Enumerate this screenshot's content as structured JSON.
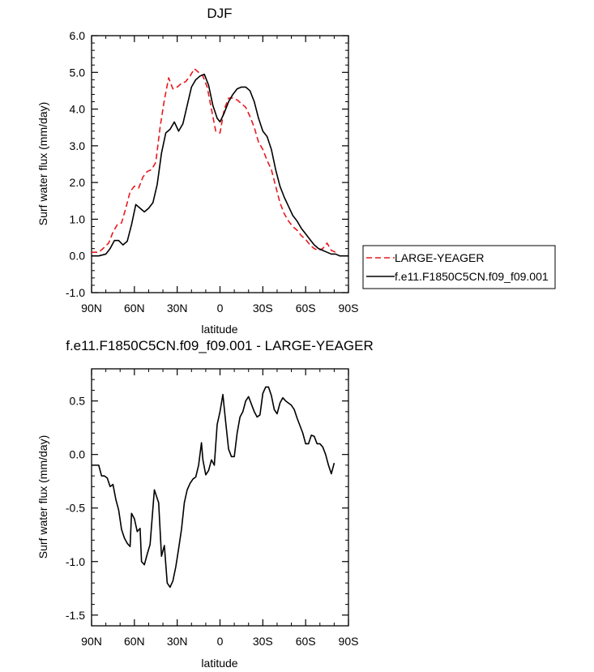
{
  "chart_data": [
    {
      "type": "line",
      "title": "DJF",
      "xlabel": "latitude",
      "ylabel": "Surf water flux (mm/day)",
      "xlim": [
        -90,
        90
      ],
      "ylim": [
        -1.0,
        6.0
      ],
      "x_ticks": [
        -90,
        -60,
        -30,
        0,
        30,
        60,
        90
      ],
      "x_tick_labels": [
        "90N",
        "60N",
        "30N",
        "0",
        "30S",
        "60S",
        "90S"
      ],
      "y_ticks": [
        -1.0,
        0.0,
        1.0,
        2.0,
        3.0,
        4.0,
        5.0,
        6.0
      ],
      "y_tick_labels": [
        "-1.0",
        "0.0",
        "1.0",
        "2.0",
        "3.0",
        "4.0",
        "5.0",
        "6.0"
      ],
      "grid": false,
      "legend_position": "right",
      "series": [
        {
          "name": "LARGE-YEAGER",
          "color": "#e8191e",
          "dash": "dashed",
          "x": [
            -90,
            -85,
            -82,
            -78,
            -75,
            -72,
            -69,
            -66,
            -63,
            -60,
            -57,
            -54,
            -51,
            -48,
            -45,
            -42,
            -39,
            -36,
            -33,
            -30,
            -27,
            -24,
            -21,
            -18,
            -15,
            -12,
            -9,
            -6,
            -3,
            0,
            3,
            6,
            9,
            12,
            15,
            18,
            21,
            24,
            27,
            30,
            33,
            36,
            39,
            42,
            45,
            48,
            51,
            54,
            57,
            60,
            63,
            66,
            69,
            72,
            75,
            78,
            81
          ],
          "y": [
            0.1,
            0.1,
            0.2,
            0.35,
            0.65,
            0.85,
            0.9,
            1.3,
            1.75,
            1.9,
            1.85,
            2.15,
            2.3,
            2.35,
            2.55,
            3.5,
            4.25,
            4.85,
            4.55,
            4.6,
            4.7,
            4.75,
            4.9,
            5.1,
            5.0,
            4.9,
            4.6,
            4.0,
            3.4,
            3.35,
            4.0,
            4.3,
            4.3,
            4.25,
            4.15,
            4.05,
            3.8,
            3.5,
            3.1,
            2.9,
            2.6,
            2.35,
            1.9,
            1.45,
            1.15,
            0.95,
            0.8,
            0.7,
            0.55,
            0.45,
            0.3,
            0.2,
            0.15,
            0.2,
            0.35,
            0.15,
            0.1
          ]
        },
        {
          "name": "f.e11.F1850C5CN.f09_f09.001",
          "color": "#000000",
          "dash": "solid",
          "x": [
            -90,
            -85,
            -80,
            -77,
            -74,
            -71,
            -68,
            -65,
            -62,
            -59,
            -56,
            -53,
            -50,
            -47,
            -44,
            -41,
            -38,
            -35,
            -32,
            -29,
            -26,
            -23,
            -20,
            -17,
            -14,
            -11,
            -8,
            -5,
            -2,
            0,
            3,
            6,
            9,
            12,
            15,
            18,
            21,
            24,
            27,
            30,
            33,
            36,
            39,
            42,
            45,
            48,
            51,
            54,
            57,
            60,
            63,
            66,
            69,
            72,
            75,
            78,
            81,
            84,
            87,
            90
          ],
          "y": [
            0.0,
            0.0,
            0.05,
            0.2,
            0.42,
            0.42,
            0.3,
            0.4,
            0.85,
            1.4,
            1.3,
            1.2,
            1.3,
            1.45,
            1.95,
            2.8,
            3.35,
            3.45,
            3.65,
            3.4,
            3.6,
            4.1,
            4.6,
            4.8,
            4.9,
            4.95,
            4.65,
            4.1,
            3.75,
            3.65,
            3.9,
            4.2,
            4.4,
            4.55,
            4.6,
            4.6,
            4.5,
            4.2,
            3.75,
            3.4,
            3.25,
            2.9,
            2.35,
            1.9,
            1.6,
            1.35,
            1.1,
            0.95,
            0.75,
            0.6,
            0.45,
            0.3,
            0.2,
            0.15,
            0.1,
            0.05,
            0.05,
            0.0,
            0.0,
            0.0
          ]
        }
      ]
    },
    {
      "type": "line",
      "title": "f.e11.F1850C5CN.f09_f09.001 - LARGE-YEAGER",
      "xlabel": "latitude",
      "ylabel": "Surf water flux (mm/day)",
      "xlim": [
        -90,
        90
      ],
      "ylim": [
        -1.6,
        0.8
      ],
      "x_ticks": [
        -90,
        -60,
        -30,
        0,
        30,
        60,
        90
      ],
      "x_tick_labels": [
        "90N",
        "60N",
        "30N",
        "0",
        "30S",
        "60S",
        "90S"
      ],
      "y_ticks": [
        -1.5,
        -1.0,
        -0.5,
        0.0,
        0.5
      ],
      "y_tick_labels": [
        "-1.5",
        "-1.0",
        "-0.5",
        "0.0",
        "0.5"
      ],
      "grid": false,
      "series": [
        {
          "color": "#000000",
          "dash": "solid",
          "x": [
            -90,
            -85,
            -83,
            -81,
            -79,
            -77,
            -75,
            -73,
            -71,
            -69,
            -67,
            -65,
            -63,
            -62,
            -60,
            -58,
            -56,
            -55,
            -53,
            -51,
            -49,
            -46,
            -43,
            -41,
            -39,
            -37,
            -35,
            -33,
            -31,
            -29,
            -27,
            -25,
            -23,
            -21,
            -19,
            -17,
            -15,
            -13,
            -12,
            -10,
            -8,
            -6,
            -4,
            -2,
            0,
            2,
            4,
            6,
            8,
            10,
            12,
            14,
            16,
            18,
            20,
            22,
            24,
            26,
            28,
            30,
            32,
            34,
            36,
            38,
            40,
            42,
            44,
            46,
            48,
            50,
            52,
            54,
            56,
            58,
            60,
            62,
            64,
            66,
            68,
            70,
            72,
            74,
            76,
            78,
            80
          ],
          "y": [
            -0.1,
            -0.1,
            -0.2,
            -0.2,
            -0.22,
            -0.3,
            -0.28,
            -0.42,
            -0.52,
            -0.7,
            -0.78,
            -0.83,
            -0.86,
            -0.55,
            -0.6,
            -0.72,
            -0.69,
            -1.0,
            -1.03,
            -0.93,
            -0.84,
            -0.33,
            -0.45,
            -0.95,
            -0.85,
            -1.2,
            -1.24,
            -1.18,
            -1.05,
            -0.88,
            -0.7,
            -0.45,
            -0.33,
            -0.27,
            -0.23,
            -0.21,
            -0.1,
            0.11,
            -0.05,
            -0.19,
            -0.15,
            -0.05,
            -0.1,
            0.28,
            0.4,
            0.56,
            0.3,
            0.05,
            -0.02,
            -0.02,
            0.2,
            0.35,
            0.4,
            0.5,
            0.54,
            0.47,
            0.4,
            0.35,
            0.37,
            0.57,
            0.63,
            0.63,
            0.55,
            0.42,
            0.38,
            0.48,
            0.53,
            0.5,
            0.48,
            0.46,
            0.42,
            0.34,
            0.27,
            0.2,
            0.1,
            0.1,
            0.18,
            0.17,
            0.1,
            0.1,
            0.07,
            0.0,
            -0.1,
            -0.18,
            -0.08
          ]
        }
      ]
    }
  ]
}
